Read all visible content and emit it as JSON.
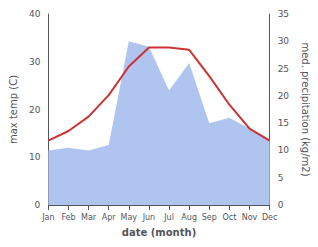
{
  "chart_data": {
    "type": "line",
    "xlabel": "date (month)",
    "ylabel": "max temp (C)",
    "y2label": "med. precipitation (kg/m2)",
    "categories": [
      "Jan",
      "Feb",
      "Mar",
      "Apr",
      "May",
      "Jun",
      "Jul",
      "Aug",
      "Sep",
      "Oct",
      "Nov",
      "Dec"
    ],
    "series": [
      {
        "type": "area",
        "color": "#b0c4f0",
        "axis": "y2",
        "values": [
          10.0,
          10.5,
          10.0,
          11.0,
          30.0,
          29.0,
          21.0,
          26.0,
          15.0,
          16.0,
          14.0,
          12.0
        ]
      },
      {
        "type": "line",
        "color": "#cc3333",
        "values": [
          13.5,
          15.5,
          18.5,
          23.0,
          29.0,
          33.0,
          33.0,
          32.5,
          27.0,
          21.0,
          16.0,
          13.5
        ]
      }
    ],
    "ylim": [
      0,
      40
    ],
    "yticks": [
      0,
      10,
      20,
      30,
      40
    ],
    "y2lim": [
      0,
      35
    ],
    "y2ticks": [
      0,
      5,
      10,
      15,
      20,
      25,
      30,
      35
    ],
    "grid": false
  }
}
